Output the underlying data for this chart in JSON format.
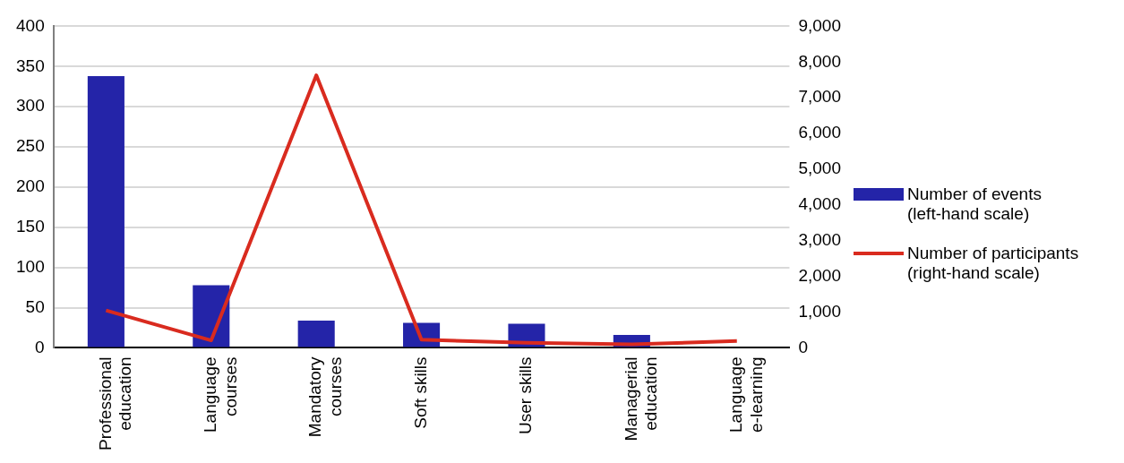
{
  "chart_data": {
    "type": "bar",
    "categories": [
      "Professional\neducation",
      "Language\ncourses",
      "Mandatory\ncourses",
      "Soft skills",
      "User skills",
      "Managerial\neducation",
      "Language\ne-learning"
    ],
    "series": [
      {
        "name": "Number of events\n(left-hand scale)",
        "color": "#2424a8",
        "values": [
          338,
          78,
          34,
          31,
          30,
          16,
          0
        ]
      },
      {
        "name": "Number of participants\n(right-hand scale)",
        "type": "line",
        "axis": "y2",
        "color": "#d92b1f",
        "values": [
          1050,
          210,
          7630,
          230,
          140,
          100,
          190
        ]
      }
    ],
    "ylim": [
      0,
      400
    ],
    "yticks": [
      0,
      50,
      100,
      150,
      200,
      250,
      300,
      350,
      400
    ],
    "y2lim": [
      0,
      9000
    ],
    "y2ticks": [
      {
        "value": 0,
        "label": "0"
      },
      {
        "value": 1000,
        "label": "1,000"
      },
      {
        "value": 2000,
        "label": "2,000"
      },
      {
        "value": 3000,
        "label": "3,000"
      },
      {
        "value": 4000,
        "label": "4,000"
      },
      {
        "value": 5000,
        "label": "5,000"
      },
      {
        "value": 6000,
        "label": "6,000"
      },
      {
        "value": 7000,
        "label": "7,000"
      },
      {
        "value": 8000,
        "label": "8,000"
      },
      {
        "value": 9000,
        "label": "9,000"
      }
    ],
    "grid": "y",
    "legend": "right",
    "marker": "none"
  }
}
